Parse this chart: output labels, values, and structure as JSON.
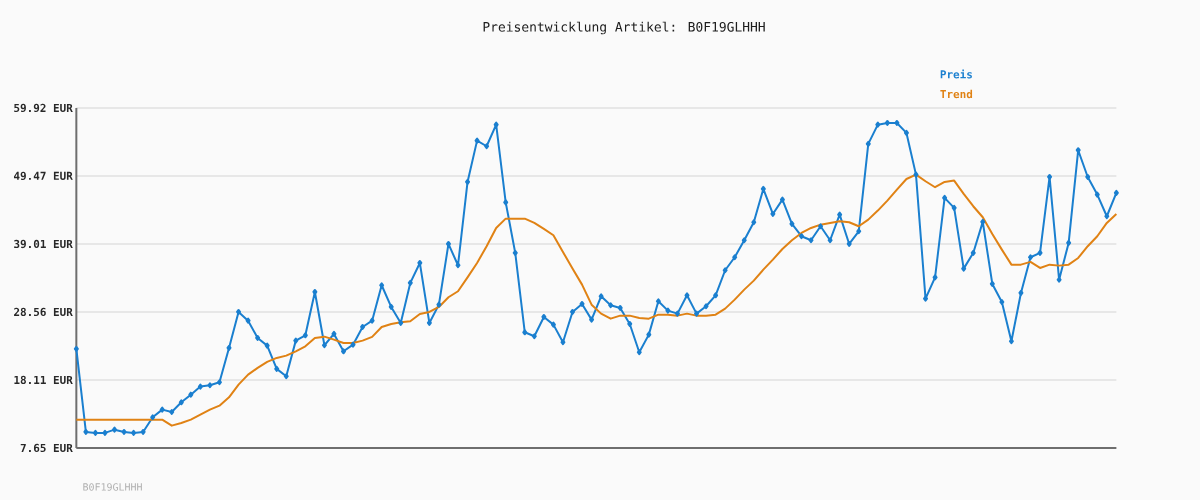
{
  "chart_data": {
    "type": "line",
    "title": "Preisentwicklung Artikel: B0F19GLHHH",
    "annotations": [
      "B0F19GLHHH"
    ],
    "categories": [
      null,
      null,
      null,
      null,
      null,
      null,
      null,
      null,
      null,
      null,
      null,
      null,
      null,
      null,
      null,
      null,
      null,
      null,
      null,
      null,
      null,
      null,
      null,
      null,
      null,
      null,
      null,
      null,
      null,
      null,
      null,
      null,
      null,
      null,
      null,
      null,
      null,
      null,
      null,
      null,
      null,
      null,
      null,
      null,
      null,
      null,
      null,
      null,
      null,
      null,
      null,
      null,
      null,
      null,
      null,
      null,
      null,
      null,
      null,
      null,
      null,
      null,
      null,
      null,
      null,
      null,
      null,
      null,
      null,
      null,
      null,
      null,
      null,
      null,
      null,
      null,
      null,
      null,
      null,
      null,
      null,
      null,
      null,
      null,
      null,
      null,
      null,
      null,
      null,
      null,
      null,
      null,
      null,
      null,
      null,
      null,
      null,
      null,
      null,
      null,
      null,
      null,
      null,
      null,
      null,
      null,
      null,
      null,
      null,
      null
    ],
    "series": [
      {
        "name": "Preis",
        "color": "#1a7fcf",
        "marker": "diamond",
        "values": [
          22.87,
          10.11,
          9.96,
          9.96,
          10.46,
          10.11,
          9.96,
          10.11,
          12.37,
          13.54,
          13.18,
          14.67,
          15.84,
          17.08,
          17.29,
          17.75,
          23.02,
          28.56,
          27.22,
          24.56,
          23.38,
          19.8,
          18.67,
          24.15,
          24.97,
          31.63,
          23.44,
          25.18,
          22.51,
          23.53,
          26.25,
          27.22,
          32.66,
          29.33,
          26.87,
          33.02,
          36.09,
          26.87,
          29.68,
          39.01,
          35.74,
          48.54,
          54.9,
          54.03,
          57.35,
          45.41,
          37.63,
          25.43,
          24.82,
          27.79,
          26.61,
          23.9,
          28.56,
          29.79,
          27.38,
          30.97,
          29.59,
          29.17,
          26.71,
          22.36,
          25.07,
          30.2,
          28.76,
          28.3,
          31.12,
          28.3,
          29.43,
          31.12,
          34.97,
          36.97,
          39.58,
          42.35,
          47.47,
          43.62,
          45.82,
          42.09,
          40.2,
          39.58,
          41.73,
          39.58,
          43.52,
          39.01,
          40.96,
          54.39,
          57.35,
          57.61,
          57.61,
          56.08,
          49.67,
          30.6,
          33.88,
          46.09,
          44.55,
          35.22,
          37.63,
          42.4,
          32.86,
          30.09,
          24.05,
          31.48,
          36.97,
          37.63,
          49.31,
          33.51,
          39.17,
          53.42,
          49.31,
          46.6,
          43.27,
          46.86
        ]
      },
      {
        "name": "Trend",
        "color": "#e08214",
        "marker": "none",
        "values": [
          12.0,
          12.0,
          12.0,
          12.0,
          12.0,
          12.0,
          12.0,
          12.0,
          12.0,
          12.0,
          11.08,
          11.49,
          12.0,
          12.77,
          13.54,
          14.15,
          15.44,
          17.38,
          18.92,
          19.95,
          20.87,
          21.49,
          21.84,
          22.51,
          23.28,
          24.56,
          24.76,
          24.3,
          23.79,
          23.79,
          24.15,
          24.72,
          26.25,
          26.71,
          26.97,
          27.13,
          28.25,
          28.56,
          29.33,
          30.82,
          31.74,
          33.88,
          36.09,
          38.66,
          41.47,
          42.9,
          42.9,
          42.9,
          42.24,
          41.32,
          40.35,
          37.78,
          35.22,
          32.76,
          29.68,
          28.3,
          27.53,
          27.99,
          27.99,
          27.64,
          27.53,
          28.14,
          28.14,
          27.99,
          28.3,
          27.99,
          27.99,
          28.14,
          29.07,
          30.45,
          31.99,
          33.37,
          35.06,
          36.6,
          38.24,
          39.58,
          40.7,
          41.47,
          41.98,
          42.24,
          42.5,
          42.35,
          41.73,
          42.75,
          44.14,
          45.68,
          47.37,
          49.0,
          49.67,
          48.65,
          47.73,
          48.54,
          48.75,
          46.7,
          44.81,
          43.12,
          40.55,
          38.14,
          35.83,
          35.83,
          36.25,
          35.32,
          35.83,
          35.68,
          35.83,
          36.86,
          38.66,
          40.2,
          42.24,
          43.62
        ]
      }
    ],
    "ylim": [
      7.65,
      59.92
    ],
    "yticks": [
      {
        "value": 7.65,
        "label": "7.65 EUR"
      },
      {
        "value": 18.11,
        "label": "18.11 EUR"
      },
      {
        "value": 28.56,
        "label": "28.56 EUR"
      },
      {
        "value": 39.01,
        "label": "39.01 EUR"
      },
      {
        "value": 49.47,
        "label": "49.47 EUR"
      },
      {
        "value": 59.92,
        "label": "59.92 EUR"
      }
    ],
    "grid": "y",
    "legend": "top right",
    "tick_labels": "y"
  }
}
